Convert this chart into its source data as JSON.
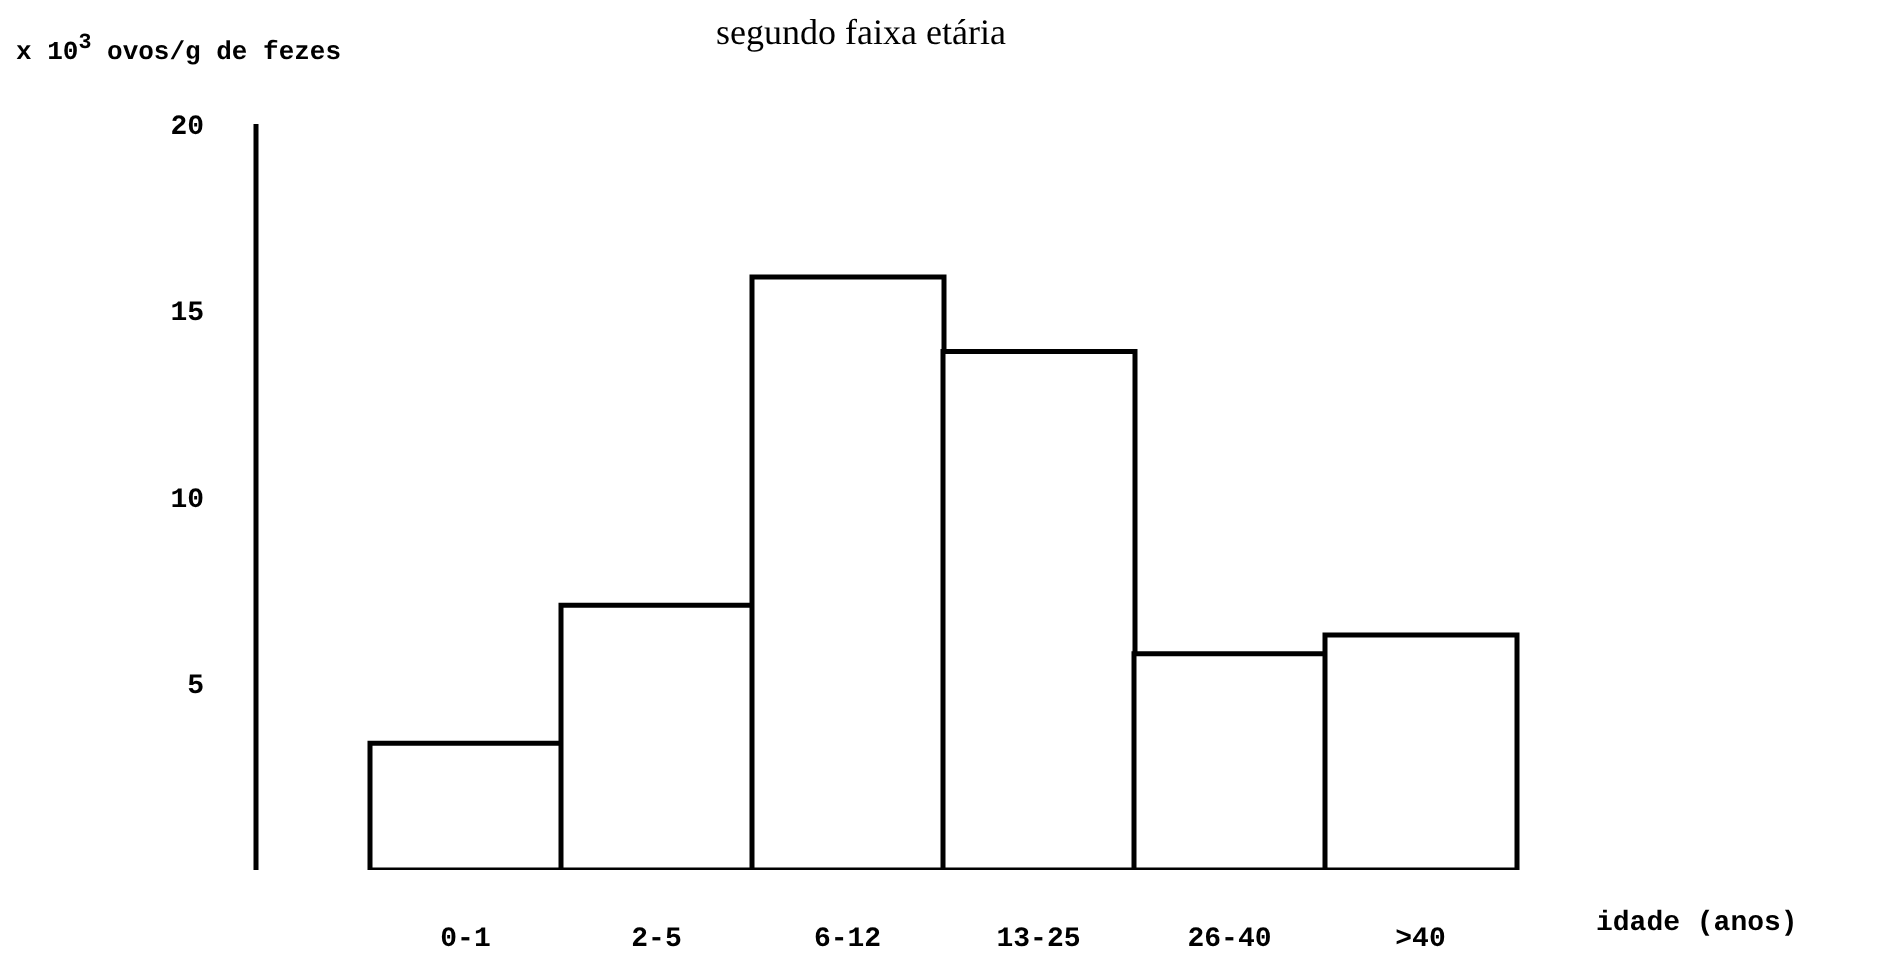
{
  "chart_data": {
    "type": "bar",
    "title": "segundo faixa etária",
    "ylabel": "x 10$^{3}$ ovos/g de fezes",
    "xlabel": "idade (anos)",
    "categories": [
      "0-1",
      "2-5",
      "6-12",
      "13-25",
      "26-40",
      ">40"
    ],
    "values": [
      3.4,
      7.1,
      15.9,
      13.9,
      5.8,
      6.3
    ],
    "color": "#ffffff",
    "ylim": [
      0,
      20
    ],
    "yticks": [
      5,
      10,
      15,
      20
    ],
    "grid": false,
    "legend": false
  }
}
